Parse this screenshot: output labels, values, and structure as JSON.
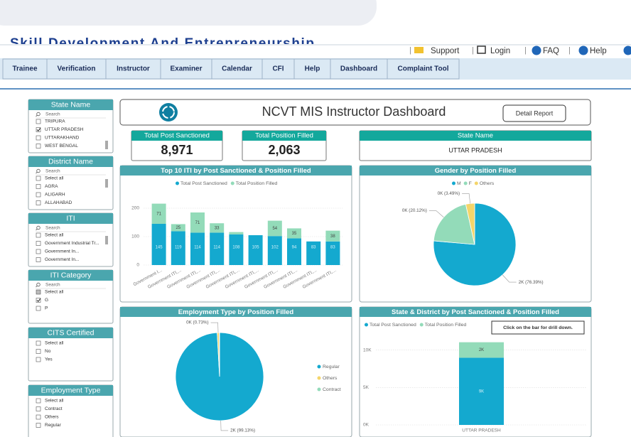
{
  "header": {
    "org_title": "Skill Development And Entrepreneurship"
  },
  "top_links": [
    "Support",
    "Login",
    "FAQ",
    "Help"
  ],
  "nav": [
    "Trainee",
    "Verification",
    "Instructor",
    "Examiner",
    "Calendar",
    "CFI",
    "Help",
    "Dashboard",
    "Complaint Tool"
  ],
  "filters": [
    {
      "title": "State Name",
      "search": "Search",
      "items": [
        {
          "label": "TRIPURA",
          "checked": false
        },
        {
          "label": "UTTAR PRADESH",
          "checked": true
        },
        {
          "label": "UTTARAKHAND",
          "checked": false
        },
        {
          "label": "WEST BENGAL",
          "checked": false
        }
      ]
    },
    {
      "title": "District Name",
      "search": "Search",
      "items": [
        {
          "label": "Select all",
          "checked": false
        },
        {
          "label": "AGRA",
          "checked": false
        },
        {
          "label": "ALIGARH",
          "checked": false
        },
        {
          "label": "ALLAHABAD",
          "checked": false
        }
      ]
    },
    {
      "title": "ITI",
      "search": "Search",
      "items": [
        {
          "label": "Select all",
          "checked": false
        },
        {
          "label": "Government Industrial Tr...",
          "checked": false
        },
        {
          "label": "Government In...",
          "checked": false
        },
        {
          "label": "Government In...",
          "checked": false
        }
      ]
    },
    {
      "title": "ITI Category",
      "search": "Search",
      "items": [
        {
          "label": "Select all",
          "checked": "partial"
        },
        {
          "label": "G",
          "checked": true
        },
        {
          "label": "P",
          "checked": false
        }
      ]
    },
    {
      "title": "CITS Certified",
      "items": [
        {
          "label": "Select all",
          "checked": false
        },
        {
          "label": "No",
          "checked": false
        },
        {
          "label": "Yes",
          "checked": false
        }
      ]
    },
    {
      "title": "Employment Type",
      "items": [
        {
          "label": "Select all",
          "checked": false
        },
        {
          "label": "Contract",
          "checked": false
        },
        {
          "label": "Others",
          "checked": false
        },
        {
          "label": "Regular",
          "checked": false
        }
      ]
    }
  ],
  "dashboard": {
    "title": "NCVT MIS Instructor Dashboard",
    "button": "Detail Report"
  },
  "cards": [
    {
      "title": "Total Post Sanctioned",
      "value": "8,971"
    },
    {
      "title": "Total Position Filled",
      "value": "2,063"
    },
    {
      "title": "State Name",
      "value": "UTTAR PRADESH"
    }
  ],
  "chart_data": [
    {
      "type": "bar",
      "stacked": true,
      "title": "Top 10 ITI by Post Sanctioned & Position Filled",
      "categories": [
        "Government I...",
        "Government ITI,...",
        "Government ITI,...",
        "Government ITI,...",
        "Government ITI,...",
        "Government ITI,...",
        "Government ITI,...",
        "Government ITI,...",
        "Government ITI,...",
        "Government ITI,..."
      ],
      "series": [
        {
          "name": "Total Post Sanctioned",
          "color": "#14a9cf",
          "values": [
            145,
            119,
            114,
            114,
            108,
            105,
            102,
            94,
            83,
            83
          ]
        },
        {
          "name": "Total Position Filled",
          "color": "#93dbb9",
          "values": [
            71,
            25,
            71,
            33,
            8,
            0,
            54,
            35,
            0,
            38
          ]
        }
      ],
      "ylim": [
        0,
        250
      ],
      "yticks": [
        0,
        100,
        200
      ],
      "grid": true
    },
    {
      "type": "pie",
      "title": "Gender by Position Filled",
      "categories": [
        "M",
        "F",
        "Others"
      ],
      "values": [
        76.39,
        20.12,
        3.49
      ],
      "value_labels": [
        "2K (76.39%)",
        "0K (20.12%)",
        "0K (3.49%)"
      ],
      "colors": [
        "#14a9cf",
        "#93dbb9",
        "#f4d56a"
      ],
      "legend": "top"
    },
    {
      "type": "pie",
      "title": "Employment Type by Position Filled",
      "categories": [
        "Regular",
        "Others",
        "Contract"
      ],
      "values": [
        99.13,
        0.73,
        0.14
      ],
      "value_labels": [
        "2K (99.13%)",
        "0K (0.73%)",
        null
      ],
      "colors": [
        "#14a9cf",
        "#f4d56a",
        "#93dbb9"
      ],
      "legend": "right"
    },
    {
      "type": "bar",
      "stacked": true,
      "title": "State & District by Post Sanctioned & Position Filled",
      "categories": [
        "UTTAR PRADESH"
      ],
      "series": [
        {
          "name": "Total Post Sanctioned",
          "color": "#14a9cf",
          "values": [
            8971
          ],
          "value_labels": [
            "9K"
          ]
        },
        {
          "name": "Total Position Filled",
          "color": "#93dbb9",
          "values": [
            2063
          ],
          "value_labels": [
            "2K"
          ]
        }
      ],
      "ylim": [
        0,
        11000
      ],
      "yticks": [
        {
          "value": 0,
          "label": "0K"
        },
        {
          "value": 5000,
          "label": "5K"
        },
        {
          "value": 10000,
          "label": "10K"
        }
      ],
      "grid": true,
      "annotation": "Click on the bar for drill down."
    }
  ]
}
